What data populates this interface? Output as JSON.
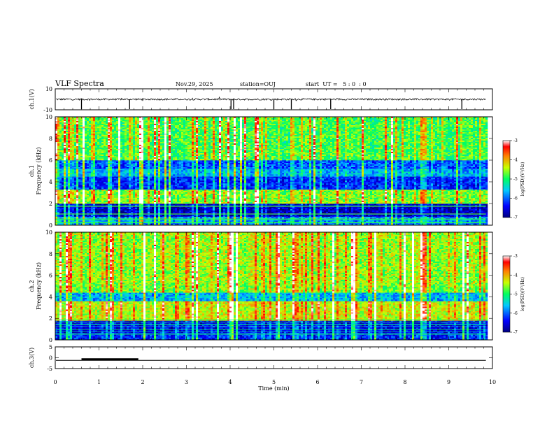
{
  "header": {
    "title": "VLF Spectra",
    "date": "Nov.29, 2025",
    "station": "station=OUJ",
    "start_ut": "start  UT =   5 : 0  : 0"
  },
  "chart_data": [
    {
      "type": "line",
      "name": "ch1-waveform",
      "ylabel": "ch.1(V)",
      "ylim": [
        -10,
        10
      ],
      "ytick_labels": [
        "10",
        "-10"
      ],
      "xlim": [
        0,
        10
      ],
      "baseline": 0,
      "spikes_min": [
        0.6,
        1.7,
        4.02,
        4.08,
        5.0,
        5.4,
        6.3,
        9.3
      ]
    },
    {
      "type": "heatmap",
      "name": "ch1-spectrogram",
      "ylabel": "ch.1\nFrequency  (kHz)",
      "ylabel_line1": "ch.1",
      "ylabel_line2": "Frequency  (kHz)",
      "ylim": [
        0,
        10
      ],
      "ytick_labels": [
        "0",
        "2",
        "4",
        "6",
        "8",
        "10"
      ],
      "xlim": [
        0,
        9.85
      ],
      "bands": [
        {
          "f0": 0.0,
          "f1": 0.8,
          "level": 0.25
        },
        {
          "f0": 0.8,
          "f1": 2.0,
          "level": 0.05
        },
        {
          "f0": 2.0,
          "f1": 3.3,
          "level": 0.55
        },
        {
          "f0": 3.3,
          "f1": 4.5,
          "level": 0.15
        },
        {
          "f0": 4.5,
          "f1": 5.2,
          "level": 0.3
        },
        {
          "f0": 5.2,
          "f1": 6.0,
          "level": 0.2
        },
        {
          "f0": 6.0,
          "f1": 10.0,
          "level": 0.5
        }
      ],
      "colorbar": {
        "label": "log(PSD)(V²/Hz)",
        "ticks": [
          "-3",
          "-4",
          "-5",
          "-6",
          "-7"
        ],
        "range": [
          -7,
          -3
        ]
      }
    },
    {
      "type": "heatmap",
      "name": "ch2-spectrogram",
      "ylabel": "ch.2\nFrequency  (kHz)",
      "ylabel_line1": "ch.2",
      "ylabel_line2": "Frequency  (kHz)",
      "ylim": [
        0,
        10
      ],
      "ytick_labels": [
        "0",
        "2",
        "4",
        "6",
        "8",
        "10"
      ],
      "xlim": [
        0,
        9.85
      ],
      "bands": [
        {
          "f0": 0.0,
          "f1": 0.6,
          "level": 0.15
        },
        {
          "f0": 0.6,
          "f1": 1.8,
          "level": 0.1
        },
        {
          "f0": 1.8,
          "f1": 3.6,
          "level": 0.62
        },
        {
          "f0": 3.6,
          "f1": 4.4,
          "level": 0.3
        },
        {
          "f0": 4.4,
          "f1": 5.3,
          "level": 0.55
        },
        {
          "f0": 5.3,
          "f1": 10.0,
          "level": 0.58
        }
      ],
      "colorbar": {
        "label": "log(PSD)(V²/Hz)",
        "ticks": [
          "-3",
          "-4",
          "-5",
          "-6",
          "-7"
        ],
        "range": [
          -7,
          -3
        ]
      }
    },
    {
      "type": "line",
      "name": "ch3-waveform",
      "ylabel": "ch.3(V)",
      "ylim": [
        -5,
        5
      ],
      "ytick_labels": [
        "5",
        "0",
        "-5"
      ],
      "xlim": [
        0,
        10
      ],
      "level": -1.2,
      "thick_segment": [
        0.6,
        1.9
      ]
    }
  ],
  "xaxis": {
    "label": "Time  (min)",
    "ticks": [
      "0",
      "1",
      "2",
      "3",
      "4",
      "5",
      "6",
      "7",
      "8",
      "9",
      "10"
    ],
    "range": [
      0,
      10
    ]
  }
}
